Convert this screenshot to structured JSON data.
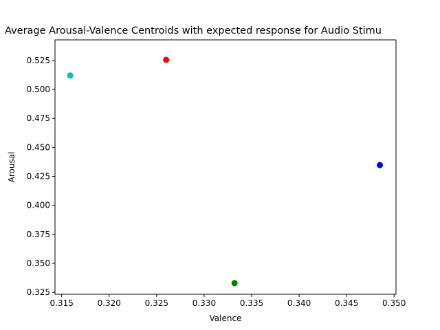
{
  "chart_data": {
    "type": "scatter",
    "title": "Average Arousal-Valence Centroids with expected response for Audio Stimu",
    "xlabel": "Valence",
    "ylabel": "Arousal",
    "xlim": [
      0.3143,
      0.3502
    ],
    "ylim": [
      0.3233,
      0.5427
    ],
    "x_ticks": [
      "0.315",
      "0.320",
      "0.325",
      "0.330",
      "0.335",
      "0.340",
      "0.345",
      "0.350"
    ],
    "x_tick_values": [
      0.315,
      0.32,
      0.325,
      0.33,
      0.335,
      0.34,
      0.345,
      0.35
    ],
    "y_ticks": [
      "0.325",
      "0.350",
      "0.375",
      "0.400",
      "0.425",
      "0.450",
      "0.475",
      "0.500",
      "0.525"
    ],
    "y_tick_values": [
      0.325,
      0.35,
      0.375,
      0.4,
      0.425,
      0.45,
      0.475,
      0.5,
      0.525
    ],
    "grid": false,
    "legend": "none",
    "points": [
      {
        "x": 0.3159,
        "y": 0.512,
        "color": "#00bfbf"
      },
      {
        "x": 0.326,
        "y": 0.5255,
        "color": "#ff0000"
      },
      {
        "x": 0.3332,
        "y": 0.3329,
        "color": "#008000"
      },
      {
        "x": 0.3485,
        "y": 0.4347,
        "color": "#0000ff"
      }
    ]
  }
}
